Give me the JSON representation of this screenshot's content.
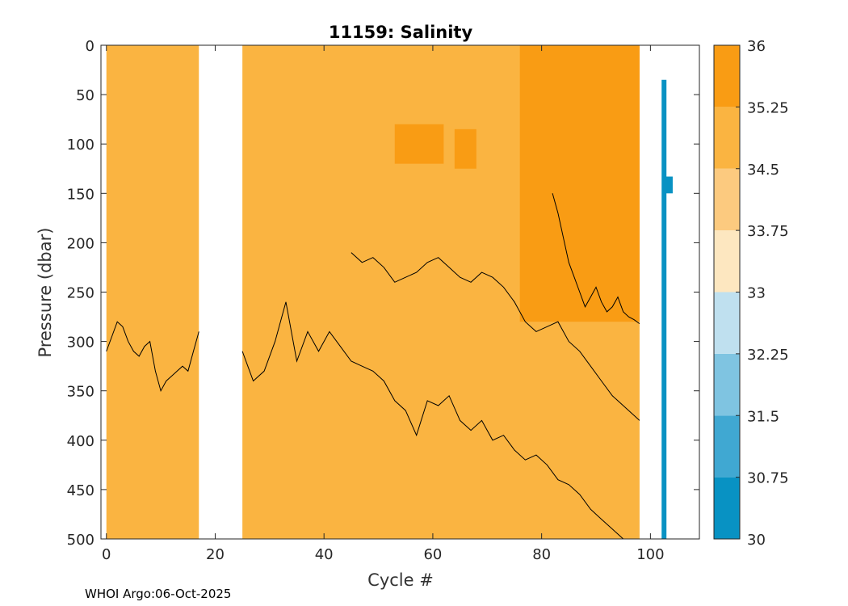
{
  "chart_data": {
    "type": "heatmap",
    "title": "11159:  Salinity",
    "xlabel": "Cycle #",
    "ylabel": "Pressure (dbar)",
    "xlim": [
      -1,
      109
    ],
    "ylim": [
      0,
      500
    ],
    "y_reversed": true,
    "xticks": [
      0,
      20,
      40,
      60,
      80,
      100
    ],
    "yticks": [
      0,
      50,
      100,
      150,
      200,
      250,
      300,
      350,
      400,
      450,
      500
    ],
    "colorbar": {
      "levels": [
        30,
        30.75,
        31.5,
        32.25,
        33,
        33.75,
        34.5,
        35.25,
        36
      ],
      "tick_labels": [
        "30",
        "30.75",
        "31.5",
        "32.25",
        "33",
        "33.75",
        "34.5",
        "35.25",
        "36"
      ],
      "colors": [
        "#0892c3",
        "#40a8d2",
        "#7fc4e1",
        "#bfe0ef",
        "#fde7c0",
        "#fcca7f",
        "#fab441",
        "#f99c14"
      ]
    },
    "data_segments": [
      {
        "x_start": 0,
        "x_end": 17,
        "p_top": 0,
        "p_bottom": 500,
        "salinity_class": "34.5-35.25"
      },
      {
        "x_start": 25,
        "x_end": 98,
        "p_top": 0,
        "p_bottom": 500,
        "salinity_class": "34.5-35.25"
      },
      {
        "x_start": 76,
        "x_end": 98,
        "p_top": 0,
        "p_bottom": 280,
        "salinity_class": "35.25-36"
      },
      {
        "x_start": 53,
        "x_end": 62,
        "p_top": 80,
        "p_bottom": 120,
        "salinity_class": "35.25-36"
      },
      {
        "x_start": 64,
        "x_end": 68,
        "p_top": 85,
        "p_bottom": 125,
        "salinity_class": "35.25-36"
      }
    ],
    "isolines": [
      {
        "name": "upper",
        "points": [
          [
            25,
            310
          ],
          [
            27,
            340
          ],
          [
            29,
            330
          ],
          [
            31,
            300
          ],
          [
            33,
            260
          ],
          [
            35,
            320
          ],
          [
            37,
            290
          ],
          [
            39,
            310
          ],
          [
            41,
            290
          ],
          [
            43,
            305
          ],
          [
            45,
            320
          ],
          [
            47,
            325
          ],
          [
            49,
            330
          ],
          [
            51,
            340
          ],
          [
            53,
            360
          ],
          [
            55,
            370
          ],
          [
            57,
            395
          ],
          [
            59,
            360
          ],
          [
            61,
            365
          ],
          [
            63,
            355
          ],
          [
            65,
            380
          ],
          [
            67,
            390
          ],
          [
            69,
            380
          ],
          [
            71,
            400
          ],
          [
            73,
            395
          ],
          [
            75,
            410
          ],
          [
            77,
            420
          ],
          [
            79,
            415
          ],
          [
            81,
            425
          ],
          [
            83,
            440
          ],
          [
            85,
            445
          ],
          [
            87,
            455
          ],
          [
            89,
            470
          ],
          [
            91,
            480
          ],
          [
            93,
            490
          ],
          [
            95,
            500
          ]
        ]
      },
      {
        "name": "lower-left",
        "points": [
          [
            0,
            310
          ],
          [
            1,
            295
          ],
          [
            2,
            280
          ],
          [
            3,
            285
          ],
          [
            4,
            300
          ],
          [
            5,
            310
          ],
          [
            6,
            315
          ],
          [
            7,
            305
          ],
          [
            8,
            300
          ],
          [
            9,
            330
          ],
          [
            10,
            350
          ],
          [
            11,
            340
          ],
          [
            12,
            335
          ],
          [
            13,
            330
          ],
          [
            14,
            325
          ],
          [
            15,
            330
          ],
          [
            16,
            310
          ],
          [
            17,
            290
          ]
        ]
      },
      {
        "name": "mid",
        "points": [
          [
            45,
            210
          ],
          [
            47,
            220
          ],
          [
            49,
            215
          ],
          [
            51,
            225
          ],
          [
            53,
            240
          ],
          [
            55,
            235
          ],
          [
            57,
            230
          ],
          [
            59,
            220
          ],
          [
            61,
            215
          ],
          [
            63,
            225
          ],
          [
            65,
            235
          ],
          [
            67,
            240
          ],
          [
            69,
            230
          ],
          [
            71,
            235
          ],
          [
            73,
            245
          ],
          [
            75,
            260
          ],
          [
            77,
            280
          ],
          [
            79,
            290
          ],
          [
            81,
            285
          ],
          [
            83,
            280
          ],
          [
            85,
            300
          ],
          [
            87,
            310
          ],
          [
            89,
            325
          ],
          [
            91,
            340
          ],
          [
            93,
            355
          ],
          [
            95,
            365
          ],
          [
            97,
            375
          ],
          [
            98,
            380
          ]
        ]
      },
      {
        "name": "east-front",
        "points": [
          [
            82,
            150
          ],
          [
            83,
            170
          ],
          [
            84,
            195
          ],
          [
            85,
            220
          ],
          [
            86,
            235
          ],
          [
            87,
            250
          ],
          [
            88,
            265
          ],
          [
            89,
            255
          ],
          [
            90,
            245
          ],
          [
            91,
            260
          ],
          [
            92,
            270
          ],
          [
            93,
            265
          ],
          [
            94,
            255
          ],
          [
            95,
            270
          ],
          [
            96,
            275
          ],
          [
            97,
            278
          ],
          [
            98,
            282
          ]
        ]
      }
    ],
    "colorbar_bar": {
      "x": 102.5,
      "p_top": 35,
      "p_bottom": 500,
      "salinity_value": 30.6
    },
    "colorbar_bar_small": {
      "x": 103.5,
      "p_top": 133,
      "p_bottom": 150,
      "salinity_value": 30.6
    }
  },
  "footer": "WHOI Argo:06-Oct-2025"
}
